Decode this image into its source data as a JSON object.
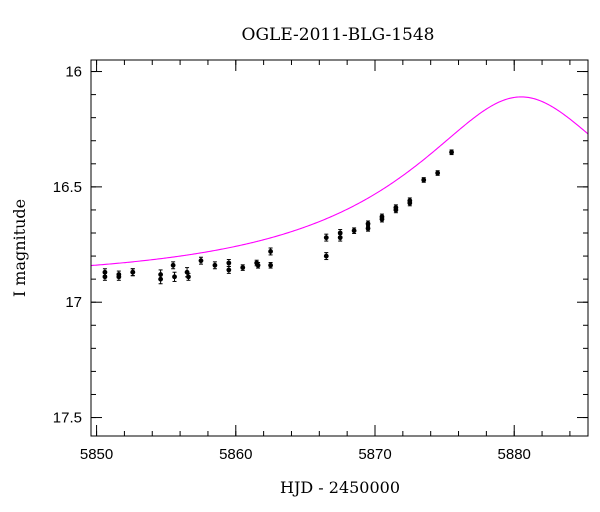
{
  "chart_data": {
    "type": "scatter",
    "title": "OGLE-2011-BLG-1548",
    "xlabel": "HJD - 2450000",
    "ylabel": "I magnitude",
    "xlim": [
      5849.6,
      5885.3
    ],
    "ylim": [
      17.58,
      15.95
    ],
    "y_inverted": true,
    "grid": false,
    "x_ticks": [
      {
        "value": 5850,
        "label": "5850"
      },
      {
        "value": 5860,
        "label": "5860"
      },
      {
        "value": 5870,
        "label": "5870"
      },
      {
        "value": 5880,
        "label": "5880"
      }
    ],
    "y_ticks": [
      {
        "value": 16.0,
        "label": "16"
      },
      {
        "value": 16.5,
        "label": "16.5"
      },
      {
        "value": 17.0,
        "label": "17"
      },
      {
        "value": 17.5,
        "label": "17.5"
      }
    ],
    "colors": {
      "points": "#000000",
      "model": "#ff00ff"
    },
    "series": [
      {
        "type": "scatter",
        "x": [
          5850.6,
          5850.6,
          5851.6,
          5851.6,
          5852.6,
          5852.6,
          5854.6,
          5854.6,
          5855.5,
          5855.6,
          5856.5,
          5856.6,
          5857.5,
          5858.5,
          5859.5,
          5859.5,
          5860.5,
          5861.5,
          5861.6,
          5862.5,
          5862.5,
          5866.5,
          5866.5,
          5867.5,
          5867.5,
          5868.5,
          5869.5,
          5869.5,
          5870.5,
          5870.5,
          5871.5,
          5871.5,
          5872.5,
          5872.5,
          5873.5,
          5874.5,
          5875.5
        ],
        "y": [
          16.87,
          16.89,
          16.88,
          16.89,
          16.87,
          16.87,
          16.88,
          16.9,
          16.84,
          16.89,
          16.87,
          16.89,
          16.82,
          16.84,
          16.83,
          16.86,
          16.85,
          16.83,
          16.84,
          16.78,
          16.84,
          16.72,
          16.8,
          16.7,
          16.72,
          16.69,
          16.66,
          16.68,
          16.64,
          16.63,
          16.59,
          16.6,
          16.56,
          16.57,
          16.47,
          16.44,
          16.35
        ],
        "err": [
          0.015,
          0.015,
          0.015,
          0.015,
          0.015,
          0.015,
          0.02,
          0.02,
          0.015,
          0.02,
          0.02,
          0.015,
          0.015,
          0.015,
          0.015,
          0.015,
          0.012,
          0.012,
          0.012,
          0.015,
          0.012,
          0.015,
          0.015,
          0.015,
          0.015,
          0.012,
          0.012,
          0.012,
          0.012,
          0.012,
          0.012,
          0.012,
          0.012,
          0.012,
          0.01,
          0.01,
          0.01
        ]
      },
      {
        "type": "line",
        "model": "microlensing",
        "t0": 5880.5,
        "u0": 0.32,
        "tE": 20,
        "baseline": 16.9,
        "peak": 16.11
      }
    ]
  }
}
